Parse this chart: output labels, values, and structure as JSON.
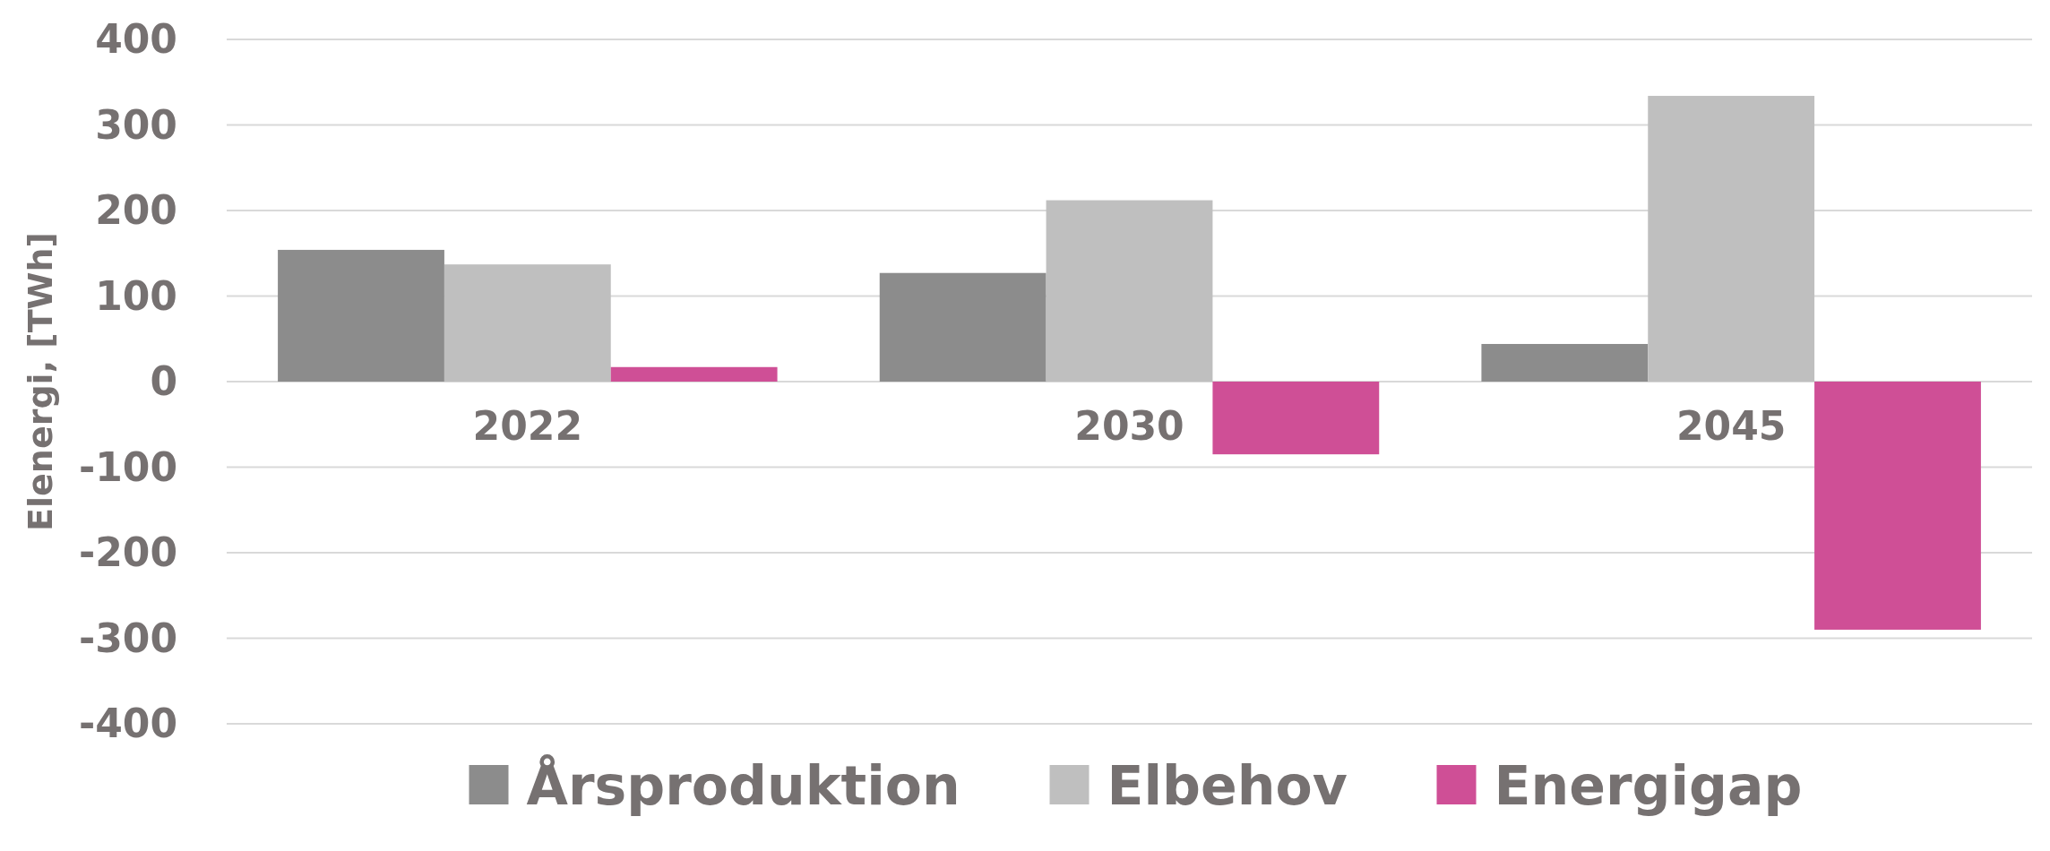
{
  "chart_data": {
    "type": "bar",
    "ylabel": "Elenergi, [TWh]",
    "categories": [
      "2022",
      "2030",
      "2045"
    ],
    "series": [
      {
        "name": "Årsproduktion",
        "color": "#8c8c8c",
        "values": [
          154,
          127,
          44
        ]
      },
      {
        "name": "Elbehov",
        "color": "#bfbfbf",
        "values": [
          137,
          212,
          334
        ]
      },
      {
        "name": "Energigap",
        "color": "#cf4f96",
        "values": [
          17,
          -85,
          -290
        ]
      }
    ],
    "ylim": [
      -400,
      400
    ],
    "yticks": [
      -400,
      -300,
      -200,
      -100,
      0,
      100,
      200,
      300,
      400
    ],
    "grid": "y",
    "legend": "bottom"
  }
}
